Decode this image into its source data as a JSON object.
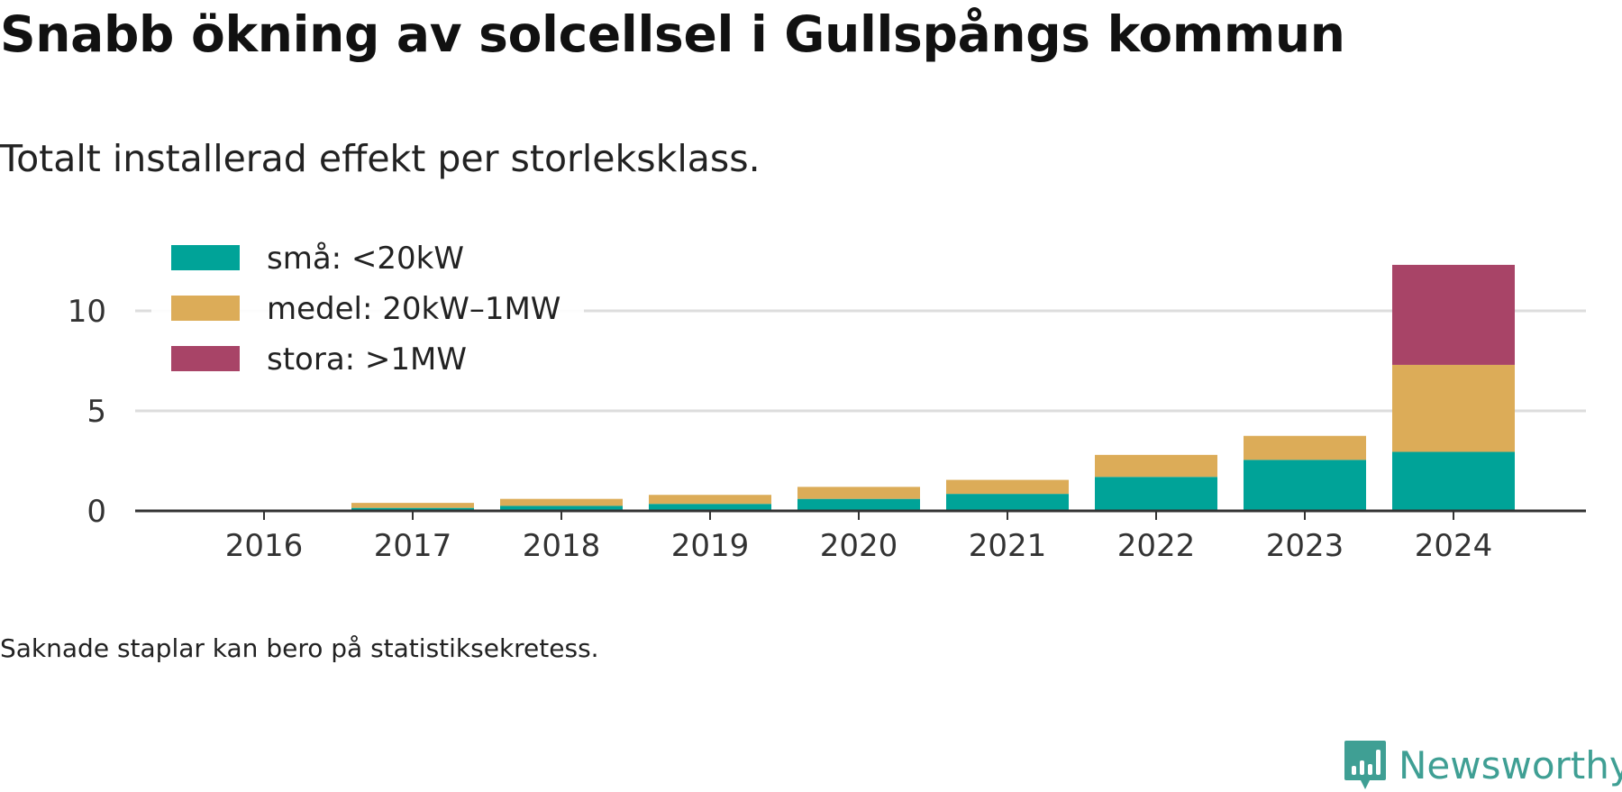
{
  "title": "Snabb ökning av solcellsel i Gullspångs kommun",
  "subtitle": "Totalt installerad effekt per storleksklass.",
  "note": "Saknade staplar kan bero på statistiksekretess.",
  "brand": {
    "name": "Newsworthy",
    "color": "#3f9f94",
    "icon": "newsworthy-logo-icon"
  },
  "chart_data": {
    "type": "bar",
    "stacked": true,
    "categories": [
      "2016",
      "2017",
      "2018",
      "2019",
      "2020",
      "2021",
      "2022",
      "2023",
      "2024"
    ],
    "series": [
      {
        "name": "små: <20kW",
        "color": "#00a398",
        "values": [
          0,
          0.15,
          0.25,
          0.35,
          0.6,
          0.85,
          1.7,
          2.55,
          2.95
        ]
      },
      {
        "name": "medel: 20kW–1MW",
        "color": "#dcac58",
        "values": [
          0,
          0.25,
          0.35,
          0.45,
          0.6,
          0.7,
          1.1,
          1.2,
          4.35
        ]
      },
      {
        "name": "stora: >1MW",
        "color": "#a84467",
        "values": [
          0,
          0,
          0,
          0,
          0,
          0,
          0,
          0,
          5.0
        ]
      }
    ],
    "yticks": [
      0,
      5,
      10
    ],
    "ylim": [
      0,
      12.8
    ],
    "grid": true,
    "legend": "top-left"
  }
}
